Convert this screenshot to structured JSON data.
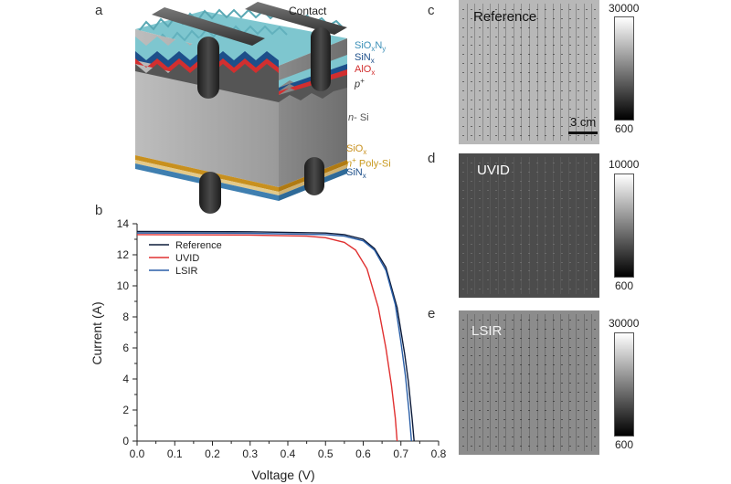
{
  "panels": {
    "a": "a",
    "b": "b",
    "c": "c",
    "d": "d",
    "e": "e"
  },
  "schematic": {
    "contact_label": "Contact",
    "layers_top": [
      {
        "main": "SiO",
        "sub": "x",
        "main2": "N",
        "sub2": "y",
        "color": "#3a8fb7"
      },
      {
        "main": "SiN",
        "sub": "x",
        "color": "#1d4f8a"
      },
      {
        "main": "AlO",
        "sub": "x",
        "color": "#d22f2f"
      },
      {
        "main": "p",
        "sup": "+",
        "italic": true,
        "color": "#333333"
      }
    ],
    "bulk": {
      "italic": "n",
      "rest": "- Si",
      "color": "#555555"
    },
    "layers_bottom": [
      {
        "main": "SiO",
        "sub": "x",
        "color": "#c8901e"
      },
      {
        "sup_pre": "n",
        "sup": "+",
        "rest": " Poly-Si",
        "color": "#d4a829"
      },
      {
        "main": "SiN",
        "sub": "x",
        "color": "#1d4f8a"
      }
    ]
  },
  "el_images": [
    {
      "id": "c",
      "title": "Reference",
      "cbar_max": "30000",
      "cbar_min": "600",
      "scale_bar": "3 cm"
    },
    {
      "id": "d",
      "title": "UVID",
      "cbar_max": "10000",
      "cbar_min": "600"
    },
    {
      "id": "e",
      "title": "LSIR",
      "cbar_max": "30000",
      "cbar_min": "600"
    }
  ],
  "chart_data": {
    "type": "line",
    "xlabel": "Voltage (V)",
    "ylabel": "Current (A)",
    "xlim": [
      0.0,
      0.8
    ],
    "ylim": [
      0,
      14
    ],
    "xticks": [
      "0.0",
      "0.1",
      "0.2",
      "0.3",
      "0.4",
      "0.5",
      "0.6",
      "0.7",
      "0.8"
    ],
    "yticks": [
      "0",
      "2",
      "4",
      "6",
      "8",
      "10",
      "12",
      "14"
    ],
    "legend_position": "top-left",
    "series": [
      {
        "name": "Reference",
        "color": "#0d1b3a",
        "isc": 13.5,
        "voc": 0.735,
        "knee": 0.63,
        "x": [
          0.0,
          0.3,
          0.5,
          0.55,
          0.6,
          0.63,
          0.66,
          0.69,
          0.71,
          0.72,
          0.73,
          0.735
        ],
        "y": [
          13.5,
          13.48,
          13.4,
          13.3,
          13.0,
          12.4,
          11.2,
          8.6,
          5.6,
          3.8,
          1.4,
          0.0
        ]
      },
      {
        "name": "UVID",
        "color": "#e03030",
        "isc": 13.3,
        "voc": 0.69,
        "knee": 0.59,
        "x": [
          0.0,
          0.3,
          0.45,
          0.5,
          0.55,
          0.58,
          0.61,
          0.64,
          0.66,
          0.675,
          0.685,
          0.69
        ],
        "y": [
          13.3,
          13.27,
          13.2,
          13.1,
          12.8,
          12.3,
          11.1,
          8.6,
          6.0,
          3.6,
          1.5,
          0.0
        ]
      },
      {
        "name": "LSIR",
        "color": "#2a5fa8",
        "isc": 13.4,
        "voc": 0.728,
        "knee": 0.62,
        "x": [
          0.0,
          0.3,
          0.5,
          0.55,
          0.6,
          0.63,
          0.66,
          0.685,
          0.7,
          0.712,
          0.722,
          0.728
        ],
        "y": [
          13.4,
          13.38,
          13.3,
          13.2,
          12.9,
          12.3,
          11.0,
          8.8,
          6.4,
          4.2,
          1.8,
          0.0
        ]
      }
    ]
  }
}
